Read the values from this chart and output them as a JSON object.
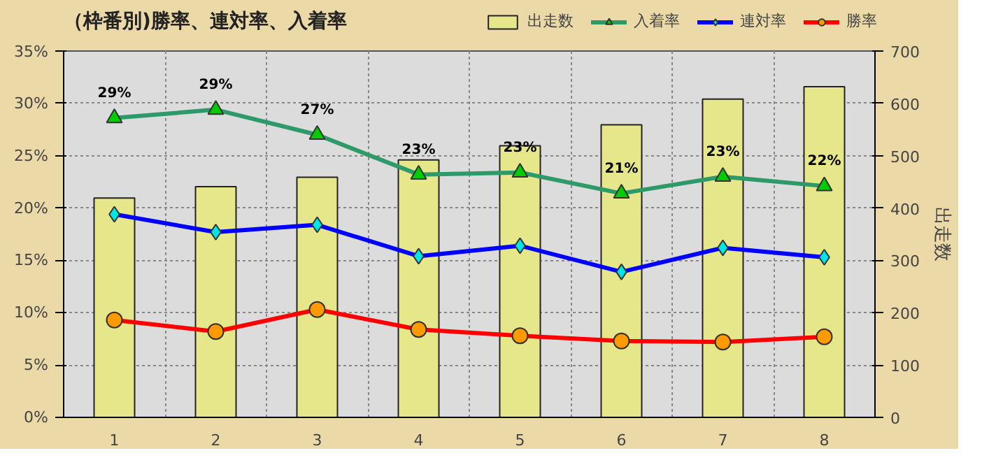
{
  "chart_data": {
    "type": "bar",
    "title": "（枠番別)勝率、連対率、入着率",
    "y2label": "出走数",
    "categories": [
      "1",
      "2",
      "3",
      "4",
      "5",
      "6",
      "7",
      "8"
    ],
    "series": [
      {
        "name": "出走数",
        "axis": "y2",
        "color": "#e6e68a",
        "values": [
          419,
          441,
          459,
          492,
          519,
          559,
          608,
          632
        ]
      },
      {
        "name": "入着率",
        "type": "line",
        "marker": "triangle",
        "color": "#2e9a6a",
        "values": [
          28.6,
          29.4,
          27.0,
          23.2,
          23.4,
          21.4,
          23.0,
          22.1
        ],
        "value_labels": [
          "29%",
          "29%",
          "27%",
          "23%",
          "23%",
          "21%",
          "23%",
          "22%"
        ]
      },
      {
        "name": "連対率",
        "type": "line",
        "marker": "diamond",
        "color": "#0000ff",
        "values": [
          19.4,
          17.7,
          18.4,
          15.4,
          16.4,
          13.9,
          16.2,
          15.3
        ]
      },
      {
        "name": "勝率",
        "type": "line",
        "marker": "circle",
        "color": "#ff0000",
        "values": [
          9.3,
          8.2,
          10.3,
          8.4,
          7.8,
          7.3,
          7.2,
          7.7
        ]
      }
    ],
    "ylim": [
      0,
      35
    ],
    "yticks": [
      {
        "value": 0,
        "label": "0%"
      },
      {
        "value": 5,
        "label": "5%"
      },
      {
        "value": 10,
        "label": "10%"
      },
      {
        "value": 15,
        "label": "15%"
      },
      {
        "value": 20,
        "label": "20%"
      },
      {
        "value": 25,
        "label": "25%"
      },
      {
        "value": 30,
        "label": "30%"
      },
      {
        "value": 35,
        "label": "35%"
      }
    ],
    "y2lim": [
      0,
      700
    ],
    "y2ticks": [
      0,
      100,
      200,
      300,
      400,
      500,
      600,
      700
    ],
    "grid": true,
    "legend": "top right"
  }
}
